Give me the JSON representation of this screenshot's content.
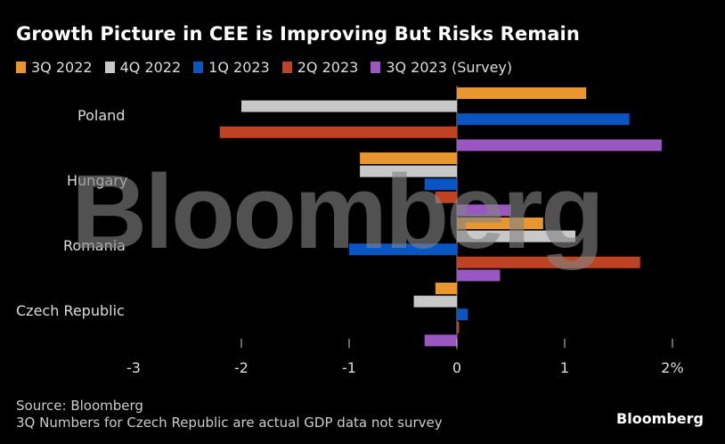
{
  "chart_data": {
    "type": "bar",
    "orientation": "horizontal",
    "title": "Growth Picture in CEE is Improving But Risks Remain",
    "categories": [
      "Poland",
      "Hungary",
      "Romania",
      "Czech Republic"
    ],
    "series": [
      {
        "name": "3Q 2022",
        "color": "#e8962d",
        "values": [
          1.2,
          -0.9,
          0.8,
          -0.2
        ]
      },
      {
        "name": "4Q 2022",
        "color": "#c8c8c8",
        "values": [
          -2.0,
          -0.9,
          1.1,
          -0.4
        ]
      },
      {
        "name": "1Q 2023",
        "color": "#0a55c4",
        "values": [
          1.6,
          -0.3,
          -1.0,
          0.1
        ]
      },
      {
        "name": "2Q 2023",
        "color": "#bf4322",
        "values": [
          -2.2,
          -0.2,
          1.7,
          0.02
        ]
      },
      {
        "name": "3Q 2023 (Survey)",
        "color": "#9a57c2",
        "values": [
          1.9,
          0.5,
          0.4,
          -0.3
        ]
      }
    ],
    "xlim": [
      -3,
      2
    ],
    "x_ticks": [
      -3,
      -2,
      -1,
      0,
      1,
      2
    ],
    "x_tick_labels": [
      "-3",
      "-2",
      "-1",
      "0",
      "1",
      "2%"
    ],
    "xlabel": "",
    "ylabel": "",
    "grid": false,
    "legend_position": "top-left"
  },
  "footer": {
    "source": "Source: Bloomberg",
    "note": "3Q Numbers for Czech Republic are actual GDP data not survey"
  },
  "brand": "Bloomberg",
  "watermark": "Bloomberg"
}
